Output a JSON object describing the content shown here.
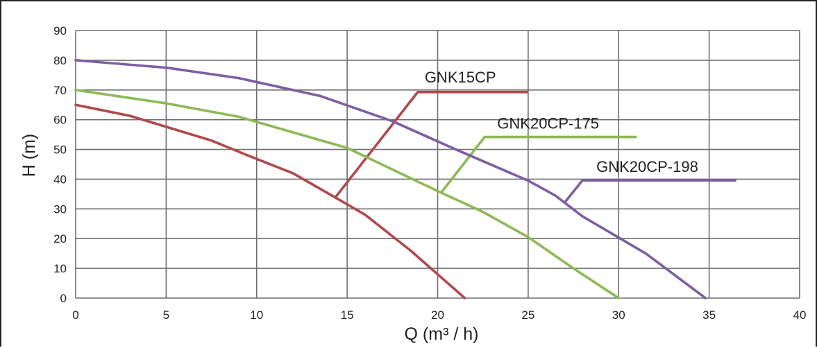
{
  "chart_data": {
    "type": "line",
    "title": "",
    "xlabel": "Q (m³ / h)",
    "ylabel": "H (m)",
    "xlim": [
      0,
      40
    ],
    "ylim": [
      0,
      90
    ],
    "x_ticks": [
      "0",
      "5",
      "10",
      "15",
      "20",
      "25",
      "30",
      "35",
      "40"
    ],
    "y_ticks": [
      "0",
      "10",
      "20",
      "30",
      "40",
      "50",
      "60",
      "70",
      "80",
      "90"
    ],
    "grid": true,
    "legend": "none",
    "series": [
      {
        "name": "GNK15CP",
        "color": "#b2474a",
        "points": [
          [
            0,
            65
          ],
          [
            3,
            61.3
          ],
          [
            7.5,
            53
          ],
          [
            9.5,
            48
          ],
          [
            12,
            42
          ],
          [
            14.3,
            34
          ],
          [
            16,
            28
          ],
          [
            18.5,
            16
          ],
          [
            20,
            8
          ],
          [
            21.5,
            0
          ]
        ],
        "leader": [
          [
            14.3,
            33.5
          ],
          [
            18.9,
            69.3
          ],
          [
            25,
            69.3
          ]
        ]
      },
      {
        "name": "GNK20CP-175",
        "color": "#8db954",
        "points": [
          [
            0,
            70
          ],
          [
            5,
            65.5
          ],
          [
            9,
            61
          ],
          [
            15,
            50.5
          ],
          [
            20,
            36
          ],
          [
            22.5,
            29
          ],
          [
            25,
            20.5
          ],
          [
            27.5,
            10
          ],
          [
            30,
            0
          ]
        ],
        "leader": [
          [
            20.2,
            35.5
          ],
          [
            22.6,
            54.2
          ],
          [
            31,
            54.2
          ]
        ]
      },
      {
        "name": "GNK20CP-198",
        "color": "#7b5ea3",
        "points": [
          [
            0,
            80
          ],
          [
            5,
            77.5
          ],
          [
            9,
            74
          ],
          [
            13.5,
            68
          ],
          [
            17.5,
            59.5
          ],
          [
            21,
            50
          ],
          [
            25,
            39.5
          ],
          [
            26.5,
            34.5
          ],
          [
            28,
            27.5
          ],
          [
            31.5,
            15
          ],
          [
            34.8,
            0
          ]
        ],
        "leader": [
          [
            27,
            32
          ],
          [
            28,
            39.6
          ],
          [
            36.5,
            39.6
          ]
        ]
      }
    ]
  }
}
